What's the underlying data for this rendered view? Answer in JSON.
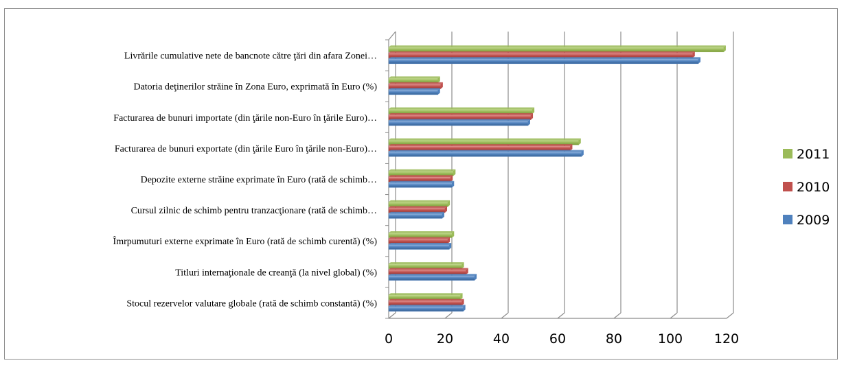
{
  "chart_data": {
    "type": "bar",
    "orientation": "horizontal",
    "categories": [
      "Livrările cumulative nete de bancnote către ţări din afara Zonei…",
      "Datoria deţinerilor străine în Zona Euro, exprimată în Euro (%)",
      "Facturarea de bunuri importate (din ţările non-Euro în ţările Euro)…",
      "Facturarea de bunuri exportate (din ţările Euro în ţările non-Euro)…",
      "Depozite externe străine exprimate în Euro (rată de schimb…",
      "Cursul zilnic de schimb pentru tranzacţionare (rată de schimb…",
      "Îmrpumuturi externe exprimate în Euro (rată de schimb curentă) (%)",
      "Titluri internaţionale de creanţă (la nivel global) (%)",
      "Stocul rezervelor valutare globale (rată de schimb constantă) (%)"
    ],
    "series": [
      {
        "name": "2011",
        "color": "#9bbb59",
        "values": [
          119,
          17.5,
          51,
          67.5,
          23,
          21,
          22.5,
          26,
          25.5
        ]
      },
      {
        "name": "2010",
        "color": "#c0504d",
        "values": [
          108,
          18.5,
          50.5,
          64.5,
          22,
          20,
          21,
          27.5,
          26
        ]
      },
      {
        "name": "2009",
        "color": "#4f81bd",
        "values": [
          110,
          17.5,
          49.5,
          68.5,
          22.5,
          19,
          21.5,
          30.5,
          26.5
        ]
      }
    ],
    "xlim": [
      0,
      120
    ],
    "x_ticks": [
      "0",
      "20",
      "40",
      "60",
      "80",
      "100",
      "120"
    ],
    "grid": true,
    "legend_position": "right",
    "style": "3d"
  }
}
